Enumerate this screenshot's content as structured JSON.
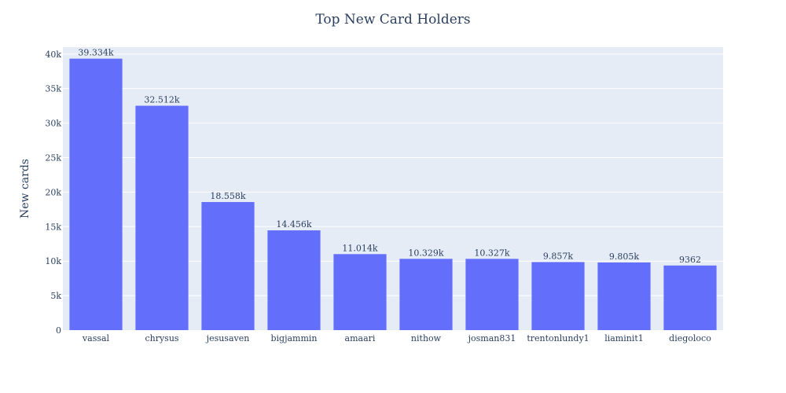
{
  "chart_data": {
    "type": "bar",
    "title": "Top New Card Holders",
    "xlabel": "",
    "ylabel": "New cards",
    "categories": [
      "vassal",
      "chrysus",
      "jesusaven",
      "bigjammin",
      "amaari",
      "nithow",
      "josman831",
      "trentonlundy1",
      "liaminit1",
      "diegoloco"
    ],
    "values": [
      39334,
      32512,
      18558,
      14456,
      11014,
      10329,
      10327,
      9857,
      9805,
      9362
    ],
    "value_labels": [
      "39.334k",
      "32.512k",
      "18.558k",
      "14.456k",
      "11.014k",
      "10.329k",
      "10.327k",
      "9.857k",
      "9.805k",
      "9362"
    ],
    "ylim": [
      0,
      41000
    ],
    "y_ticks": [
      0,
      5000,
      10000,
      15000,
      20000,
      25000,
      30000,
      35000,
      40000
    ],
    "y_tick_labels": [
      "0",
      "5k",
      "10k",
      "15k",
      "20k",
      "25k",
      "30k",
      "35k",
      "40k"
    ],
    "grid": true,
    "colors": {
      "bar": "#636efa",
      "plot_bg": "#e5ecf6",
      "grid": "#ffffff",
      "text": "#2a3f5f"
    }
  }
}
